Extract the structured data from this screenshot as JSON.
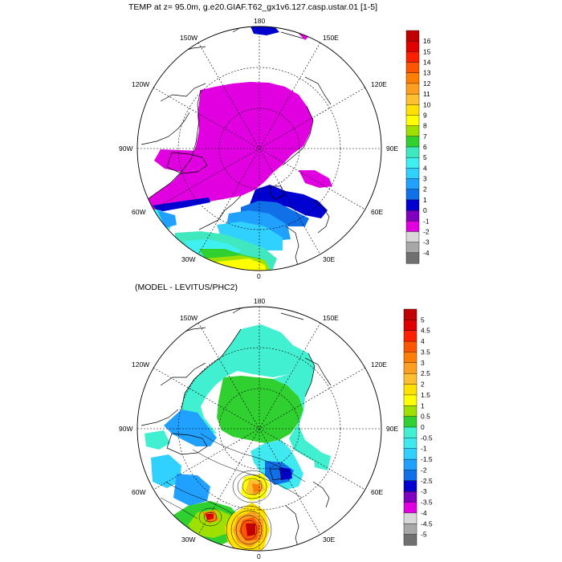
{
  "panel_top": {
    "title": "TEMP at z=  95.0m, g.e20.GIAF.T62_gx1v6.127.casp.ustar.01 [1-5]",
    "lon_labels": {
      "n": "180",
      "nw": "150W",
      "ne": "150E",
      "wnw": "120W",
      "ene": "120E",
      "w": "90W",
      "e": "90E",
      "wsw": "60W",
      "ese": "60E",
      "sw": "30W",
      "se": "30E",
      "s": "0"
    },
    "colorbar": {
      "labels": [
        "16",
        "15",
        "14",
        "13",
        "12",
        "11",
        "10",
        "9",
        "8",
        "7",
        "6",
        "5",
        "4",
        "3",
        "2",
        "1",
        "0",
        "-1",
        "-2",
        "-3",
        "-4"
      ],
      "colors": [
        "#c00000",
        "#e00000",
        "#ff2000",
        "#ff5500",
        "#ff8000",
        "#ff9f20",
        "#ffbf30",
        "#ffe000",
        "#ffff00",
        "#a0e000",
        "#30d030",
        "#40e8c0",
        "#40f0f0",
        "#30d0ff",
        "#20a0ff",
        "#1070e8",
        "#0000d0",
        "#8000c0",
        "#e000e0",
        "#d8d8d8",
        "#a8a8a8",
        "#707070"
      ]
    }
  },
  "panel_bottom": {
    "title": "(MODEL - LEVITUS/PHC2)",
    "lon_labels": {
      "n": "180",
      "nw": "150W",
      "ne": "150E",
      "wnw": "120W",
      "ene": "120E",
      "w": "90W",
      "e": "90E",
      "wsw": "60W",
      "ese": "60E",
      "sw": "30W",
      "se": "30E",
      "s": "0"
    },
    "colorbar": {
      "labels": [
        "5",
        "4.5",
        "4",
        "3.5",
        "3",
        "2.5",
        "2",
        "1.5",
        "1",
        "0.5",
        "0",
        "-0.5",
        "-1",
        "-1.5",
        "-2",
        "-2.5",
        "-3",
        "-3.5",
        "-4",
        "-4.5",
        "-5"
      ],
      "colors": [
        "#c00000",
        "#e00000",
        "#ff2000",
        "#ff5500",
        "#ff8000",
        "#ff9f20",
        "#ffbf30",
        "#ffe000",
        "#ffff00",
        "#a0e000",
        "#30d030",
        "#40f0d0",
        "#40e8f0",
        "#30d0ff",
        "#20a0ff",
        "#1070e8",
        "#0000d0",
        "#8000c0",
        "#e000e0",
        "#d8d8d8",
        "#a8a8a8",
        "#707070"
      ]
    }
  }
}
